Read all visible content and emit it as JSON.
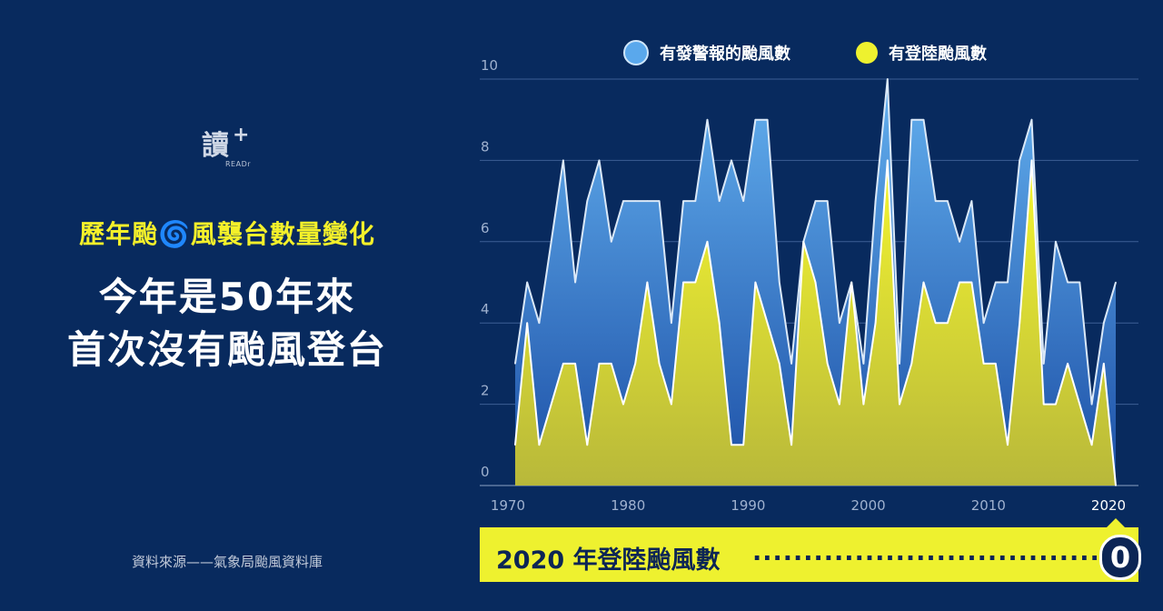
{
  "logo": {
    "glyph": "讀",
    "plus": "+",
    "brand": "READr"
  },
  "subtitle": "歷年颱🌀風襲台數量變化",
  "title_line1": "今年是50年來",
  "title_line2": "首次沒有颱風登台",
  "source": "資料來源——氣象局颱風資料庫",
  "banner": {
    "label": "2020 年登陸颱風數",
    "dots": "..........................................",
    "value": "0"
  },
  "colors": {
    "background": "#082a5e",
    "warning": "#5aa8ec",
    "landing": "#eef12f"
  },
  "chart_data": {
    "type": "area",
    "x": [
      1970,
      1971,
      1972,
      1973,
      1974,
      1975,
      1976,
      1977,
      1978,
      1979,
      1980,
      1981,
      1982,
      1983,
      1984,
      1985,
      1986,
      1987,
      1988,
      1989,
      1990,
      1991,
      1992,
      1993,
      1994,
      1995,
      1996,
      1997,
      1998,
      1999,
      2000,
      2001,
      2002,
      2003,
      2004,
      2005,
      2006,
      2007,
      2008,
      2009,
      2010,
      2011,
      2012,
      2013,
      2014,
      2015,
      2016,
      2017,
      2018,
      2019,
      2020
    ],
    "series": [
      {
        "name": "有發警報的颱風數",
        "color": "#5aa8ec",
        "values": [
          3,
          5,
          4,
          6,
          8,
          5,
          7,
          8,
          6,
          7,
          7,
          7,
          7,
          4,
          7,
          7,
          9,
          7,
          8,
          7,
          9,
          9,
          5,
          3,
          6,
          7,
          7,
          4,
          5,
          3,
          7,
          10,
          3,
          9,
          9,
          7,
          7,
          6,
          7,
          4,
          5,
          5,
          8,
          9,
          3,
          6,
          5,
          5,
          2,
          4,
          5
        ]
      },
      {
        "name": "有登陸颱風數",
        "color": "#eef12f",
        "values": [
          1,
          4,
          1,
          2,
          3,
          3,
          1,
          3,
          3,
          2,
          3,
          5,
          3,
          2,
          5,
          5,
          6,
          4,
          1,
          1,
          5,
          4,
          3,
          1,
          6,
          5,
          3,
          2,
          5,
          2,
          4,
          8,
          2,
          3,
          5,
          4,
          4,
          5,
          5,
          3,
          3,
          1,
          4,
          8,
          2,
          2,
          3,
          2,
          1,
          3,
          0
        ]
      }
    ],
    "x_ticks": [
      "1970",
      "1980",
      "1990",
      "2000",
      "2010",
      "2020"
    ],
    "y_ticks": [
      "0",
      "2",
      "4",
      "6",
      "8",
      "10"
    ],
    "ylim": [
      0,
      10
    ],
    "xlim": [
      1970,
      2020
    ],
    "grid": true,
    "legend": "top"
  }
}
